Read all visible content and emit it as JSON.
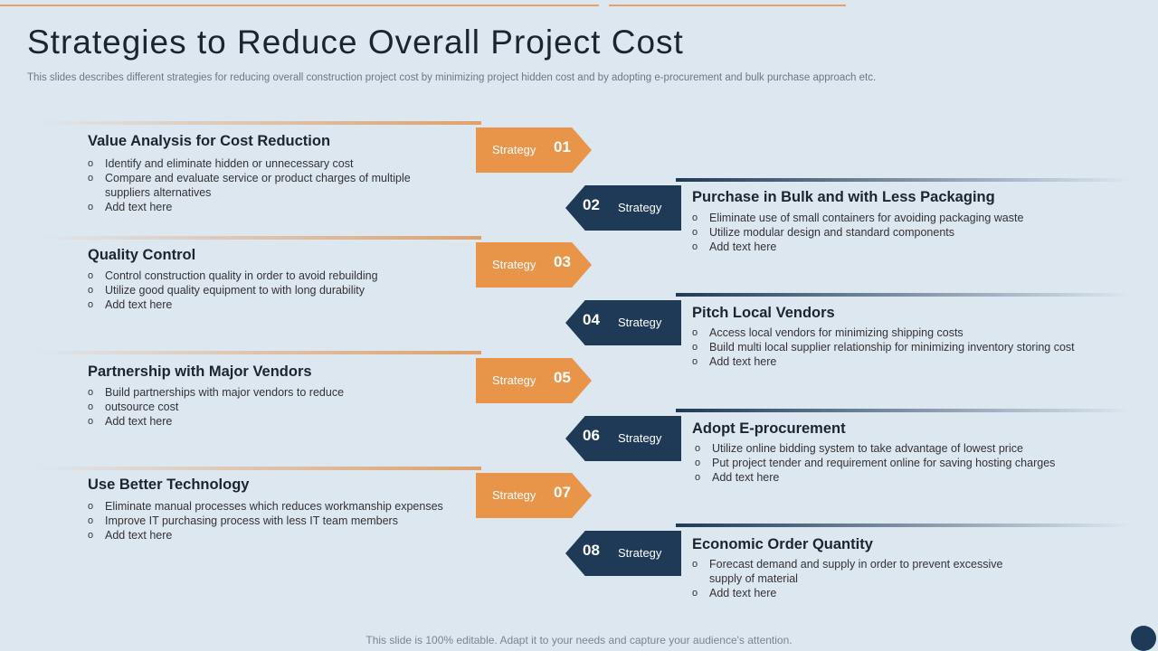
{
  "title": "Strategies to Reduce Overall Project Cost",
  "subtitle": "This slides describes different strategies for reducing overall construction project cost by minimizing project hidden cost and by adopting e-procurement and bulk purchase approach etc.",
  "footer": "This slide is 100% editable. Adapt it to your needs and capture your audience's attention.",
  "colors": {
    "accent_orange": "#e8954a",
    "accent_navy": "#1f3a57",
    "background": "#dde7f0"
  },
  "strategies": [
    {
      "word": "Strategy",
      "number": "01",
      "title": "Value Analysis for Cost Reduction",
      "bullets": [
        "Identify and eliminate hidden or unnecessary cost",
        "Compare and evaluate  service or product charges of multiple",
        "suppliers alternatives",
        "Add text  here"
      ]
    },
    {
      "word": "Strategy",
      "number": "02",
      "title": "Purchase in Bulk and with Less Packaging",
      "bullets": [
        "Eliminate use of small containers for avoiding  packaging waste",
        "Utilize modular design and standard components",
        "Add text  here"
      ]
    },
    {
      "word": "Strategy",
      "number": "03",
      "title": "Quality Control",
      "bullets": [
        "Control construction quality in order to avoid rebuilding",
        "Utilize good quality equipment to with long durability",
        "Add text  here"
      ]
    },
    {
      "word": "Strategy",
      "number": "04",
      "title": "Pitch Local Vendors",
      "bullets": [
        "Access local vendors  for minimizing shipping costs",
        "Build multi local supplier relationship for minimizing inventory  storing cost",
        "Add text  here"
      ]
    },
    {
      "word": "Strategy",
      "number": "05",
      "title": "Partnership with Major Vendors",
      "bullets": [
        "Build partnerships  with major vendors  to reduce",
        " outsource cost",
        "Add text  here"
      ]
    },
    {
      "word": "Strategy",
      "number": "06",
      "title": "Adopt E-procurement",
      "bullets": [
        "Utilize online bidding system to take advantage  of lowest price",
        "Put project tender and requirement  online for saving hosting charges",
        "Add text  here"
      ]
    },
    {
      "word": "Strategy",
      "number": "07",
      "title": "Use Better Technology",
      "bullets": [
        "Eliminate manual processes  which reduces workmanship expenses",
        "Improve  IT purchasing process with less IT team members",
        "Add text  here"
      ]
    },
    {
      "word": "Strategy",
      "number": "08",
      "title": "Economic Order Quantity",
      "bullets": [
        "Forecast demand  and supply in order to prevent  excessive",
        "supply of material",
        "Add text  here"
      ]
    }
  ]
}
